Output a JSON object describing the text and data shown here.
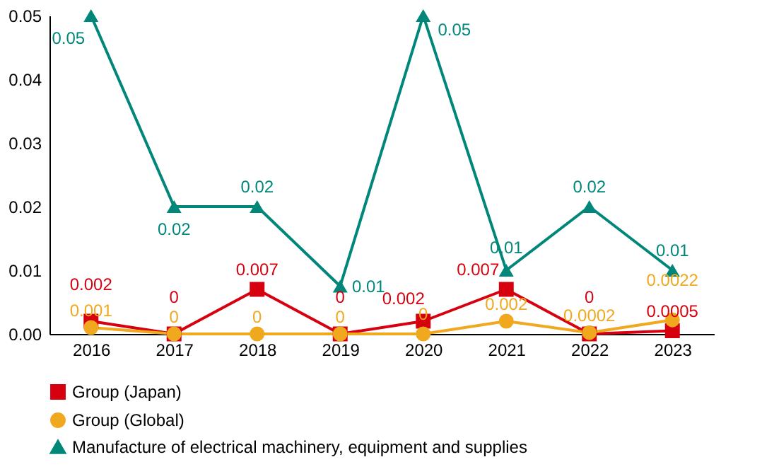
{
  "chart_data": {
    "type": "line",
    "categories": [
      "2016",
      "2017",
      "2018",
      "2019",
      "2020",
      "2021",
      "2022",
      "2023"
    ],
    "ylim": [
      0,
      0.05
    ],
    "yticks": [
      {
        "value": 0,
        "label": "0.00"
      },
      {
        "value": 0.01,
        "label": "0.01"
      },
      {
        "value": 0.02,
        "label": "0.02"
      },
      {
        "value": 0.03,
        "label": "0.03"
      },
      {
        "value": 0.04,
        "label": "0.04"
      },
      {
        "value": 0.05,
        "label": "0.05"
      }
    ],
    "grid": false,
    "legend": "bottom",
    "line_style": "solid",
    "series": [
      {
        "name": "Group (Japan)",
        "color": "#d7000f",
        "marker": "square",
        "values": [
          0.002,
          0,
          0.007,
          0,
          0.002,
          0.007,
          0,
          0.0005
        ],
        "value_labels": [
          "0.002",
          "0",
          "0.007",
          "0",
          "0.002",
          "0.007",
          "0",
          "0.0005"
        ]
      },
      {
        "name": "Group (Global)",
        "color": "#f0a81e",
        "marker": "circle",
        "values": [
          0.001,
          0,
          0,
          0,
          0,
          0.002,
          0.0002,
          0.0022
        ],
        "value_labels": [
          "0.001",
          "0",
          "0",
          "0",
          "0",
          "0.002",
          "0.0002",
          "0.0022"
        ]
      },
      {
        "name": "Manufacture of electrical machinery, equipment and supplies",
        "color": "#00877a",
        "marker": "triangle",
        "values": [
          0.05,
          0.02,
          0.02,
          0.0075,
          0.05,
          0.01,
          0.02,
          0.01
        ],
        "value_labels": [
          "0.05",
          "0.02",
          "0.02",
          "0.01",
          "0.05",
          "0.01",
          "0.02",
          "0.01"
        ]
      }
    ]
  }
}
